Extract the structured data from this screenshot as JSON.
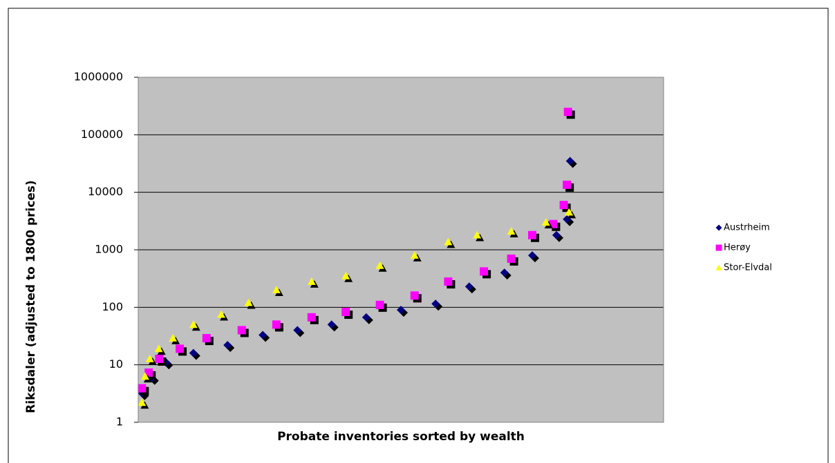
{
  "chart_data": {
    "type": "scatter",
    "x_label": "Probate inventories sorted by wealth",
    "y_label": "Riksdaler (adjusted to 1800 prices)",
    "log_y": true,
    "grid": true,
    "xlim": [
      0,
      100
    ],
    "ylim": [
      1,
      1000000
    ],
    "yticks": [
      1,
      10,
      100,
      1000,
      10000,
      100000,
      1000000
    ],
    "legend_position": "right",
    "series": [
      {
        "name": "Austrheim",
        "color": "#000080",
        "marker": "diamond",
        "x": [
          0.7,
          2.6,
          5.3,
          10.5,
          17,
          23.7,
          30.3,
          36.8,
          43.4,
          50,
          56.6,
          63,
          69.7,
          75,
          79.6,
          81.6,
          82.2
        ],
        "values": [
          3.2,
          5.9,
          11,
          16,
          22,
          33,
          40,
          50,
          67,
          90,
          115,
          230,
          400,
          800,
          1800,
          3400,
          35000
        ]
      },
      {
        "name": "Herøy",
        "color": "#ff00ff",
        "marker": "square",
        "x": [
          0.7,
          2,
          4,
          7.9,
          13,
          19.7,
          26.3,
          33,
          39.5,
          46,
          52.6,
          59,
          65.8,
          71,
          75,
          79,
          81,
          81.6,
          81.8
        ],
        "values": [
          3.9,
          7.3,
          12.7,
          19,
          29,
          40,
          50,
          67,
          83,
          110,
          160,
          280,
          420,
          700,
          1800,
          2800,
          6000,
          13500,
          250000
        ]
      },
      {
        "name": "Stor-Elvdal",
        "color": "#ffff00",
        "marker": "triangle",
        "x": [
          0.7,
          1.3,
          2.2,
          3.9,
          6.6,
          10.5,
          15.8,
          21,
          26.3,
          33,
          39.5,
          46,
          52.6,
          59,
          64.5,
          71,
          77.6,
          82
        ],
        "values": [
          2.2,
          6.3,
          12.7,
          19,
          29,
          50,
          75,
          120,
          200,
          280,
          350,
          530,
          800,
          1370,
          1800,
          2100,
          3000,
          4500
        ]
      }
    ]
  }
}
